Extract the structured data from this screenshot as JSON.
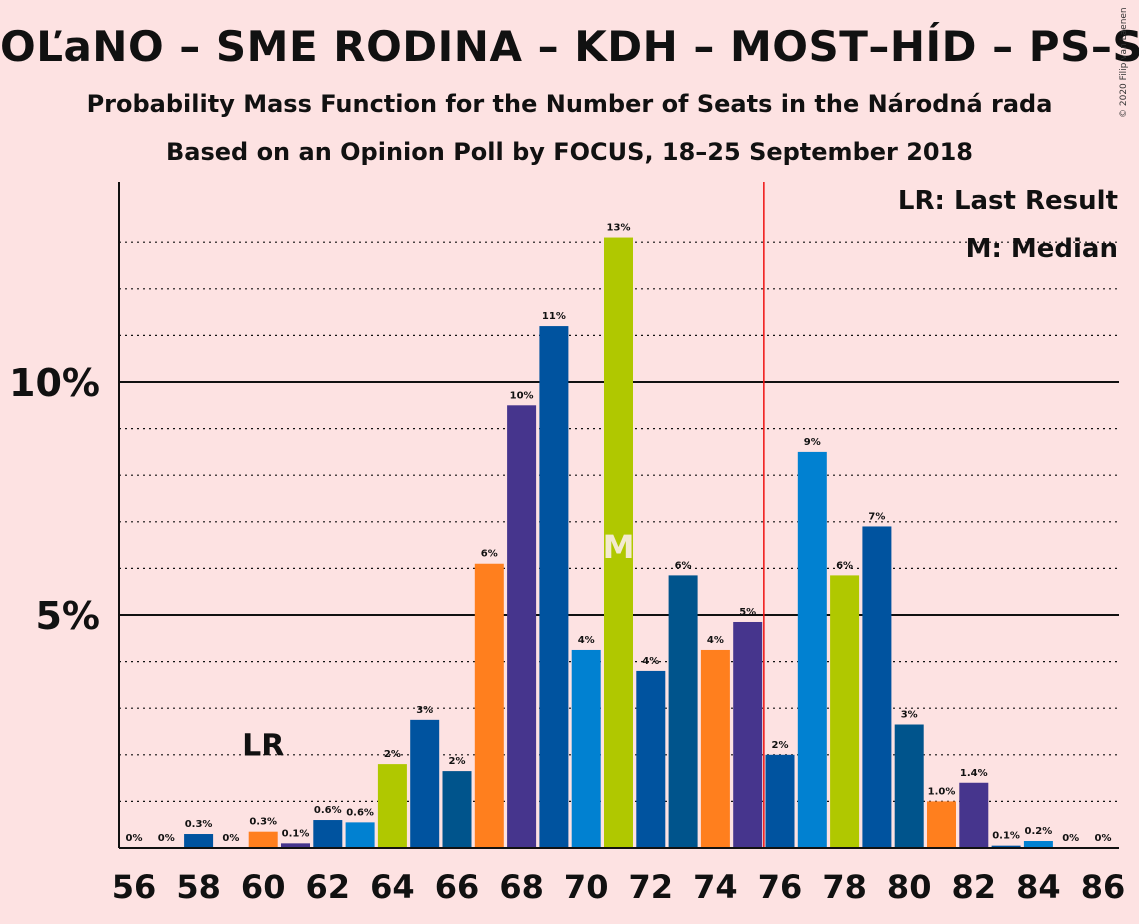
{
  "title": "OĽaNO – SME RODINA – KDH – MOST–HÍD – PS–SPOLU",
  "subtitle": "Probability Mass Function for the Number of Seats in the Národná rada",
  "subtitle2": "Based on an Opinion Poll by FOCUS, 18–25 September 2018",
  "copyright": "© 2020 Filip van Laenen",
  "legend": {
    "lr": "LR: Last Result",
    "median": "M: Median"
  },
  "markers": {
    "lr_label": "LR",
    "lr_seat": 60,
    "median_label": "M",
    "median_seat": 71,
    "majority_seat": 76
  },
  "chart_data": {
    "type": "bar",
    "x": [
      56,
      57,
      58,
      59,
      60,
      61,
      62,
      63,
      64,
      65,
      66,
      67,
      68,
      69,
      70,
      71,
      72,
      73,
      74,
      75,
      76,
      77,
      78,
      79,
      80,
      81,
      82,
      83,
      84,
      85,
      86
    ],
    "values": [
      0,
      0,
      0.3,
      0,
      0.35,
      0.1,
      0.6,
      0.55,
      1.8,
      2.75,
      1.65,
      6.1,
      9.5,
      11.2,
      4.25,
      13.1,
      3.8,
      5.85,
      4.25,
      4.85,
      2.0,
      8.5,
      5.85,
      6.9,
      2.65,
      1.0,
      1.4,
      0.05,
      0.15,
      0,
      0
    ],
    "labels": [
      "0%",
      "0%",
      "0.3%",
      "0%",
      "0.3%",
      "0.1%",
      "0.6%",
      "0.6%",
      "2%",
      "3%",
      "2%",
      "6%",
      "10%",
      "11%",
      "4%",
      "13%",
      "4%",
      "6%",
      "4%",
      "5%",
      "2%",
      "9%",
      "6%",
      "7%",
      "3%",
      "1.0%",
      "1.4%",
      "0.1%",
      "0.2%",
      "0%",
      "0%"
    ],
    "colors": [
      "#00539f",
      "#00539f",
      "#00539f",
      "#00539f",
      "#ff7f1e",
      "#46358d",
      "#00539f",
      "#0181d1",
      "#b0c800",
      "#00539f",
      "#00548c",
      "#ff7f1e",
      "#46358d",
      "#00539f",
      "#0181d1",
      "#b0c800",
      "#00539f",
      "#00548c",
      "#ff7f1e",
      "#46358d",
      "#00539f",
      "#0181d1",
      "#b0c800",
      "#00539f",
      "#00548c",
      "#ff7f1e",
      "#46358d",
      "#00539f",
      "#0181d1",
      "#b0c800",
      "#00539f"
    ],
    "x_tick_labels": [
      "56",
      "58",
      "60",
      "62",
      "64",
      "66",
      "68",
      "70",
      "72",
      "74",
      "76",
      "78",
      "80",
      "82",
      "84",
      "86"
    ],
    "y_tick_labels": [
      {
        "value": 5,
        "label": "5%"
      },
      {
        "value": 10,
        "label": "10%"
      }
    ],
    "ylim": [
      0,
      14.3
    ],
    "grid": "dotted horizontal every 1%",
    "legend_position": "top-right"
  }
}
